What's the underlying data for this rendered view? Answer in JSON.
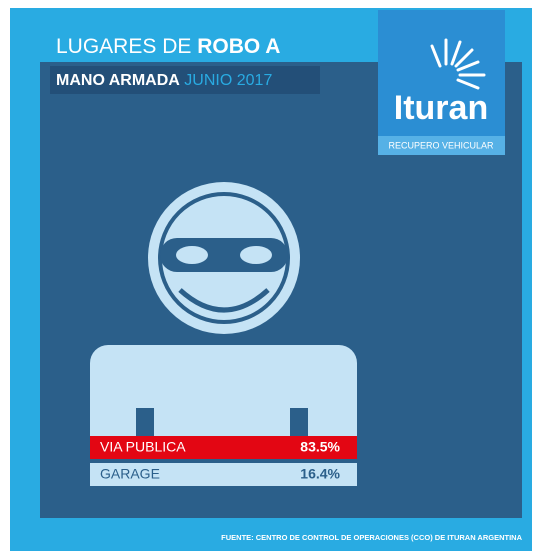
{
  "title": {
    "line1": "LUGARES DE",
    "line1_bold": "ROBO A",
    "line2_bold": "MANO ARMADA",
    "line2_accent": "JUNIO 2017"
  },
  "logo": {
    "brand": "Ituran",
    "tagline": "RECUPERO VEHICULAR"
  },
  "items": [
    {
      "label": "VIA PUBLICA",
      "value": "83.5%"
    },
    {
      "label": "GARAGE",
      "value": "16.4%"
    }
  ],
  "source": "FUENTE: CENTRO DE CONTROL DE OPERACIONES (CCO) DE ITURAN ARGENTINA"
}
